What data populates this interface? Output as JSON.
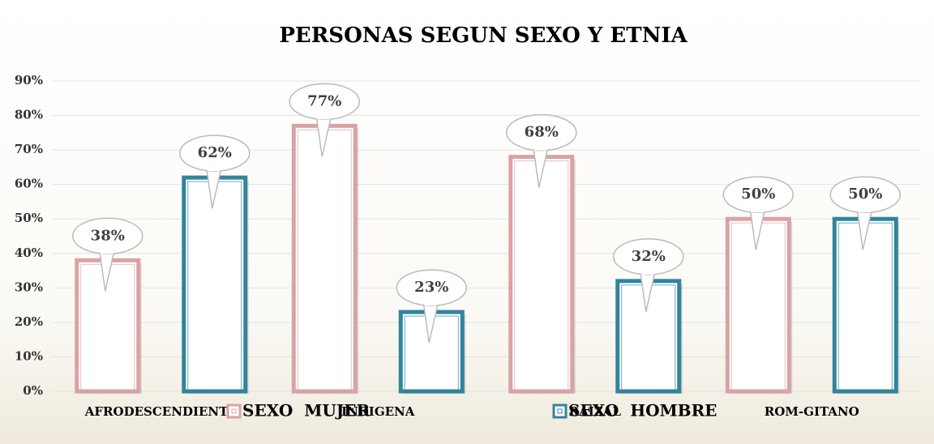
{
  "chart_data": {
    "type": "bar",
    "title": "PERSONAS SEGUN SEXO Y ETNIA",
    "categories": [
      "AFRODESCENDIENTE",
      "INDIGENA",
      "RAIZAL",
      "ROM-GITANO"
    ],
    "series": [
      {
        "name": "SEXO  MUJER",
        "color": "#d9a3a3",
        "values": [
          38,
          77,
          68,
          50
        ],
        "value_labels": [
          "38%",
          "77%",
          "68%",
          "50%"
        ]
      },
      {
        "name": "SEXO  HOMBRE",
        "color": "#31849b",
        "values": [
          62,
          23,
          32,
          50
        ],
        "value_labels": [
          "62%",
          "23%",
          "32%",
          "50%"
        ]
      }
    ],
    "ylim": [
      0,
      90
    ],
    "yticks": [
      {
        "value": 0,
        "label": "0%"
      },
      {
        "value": 10,
        "label": "10%"
      },
      {
        "value": 20,
        "label": "20%"
      },
      {
        "value": 30,
        "label": "30%"
      },
      {
        "value": 40,
        "label": "40%"
      },
      {
        "value": 50,
        "label": "50%"
      },
      {
        "value": 60,
        "label": "60%"
      },
      {
        "value": 70,
        "label": "70%"
      },
      {
        "value": 80,
        "label": "80%"
      },
      {
        "value": 90,
        "label": "90%"
      }
    ],
    "grid": true,
    "legend": "bottom"
  }
}
